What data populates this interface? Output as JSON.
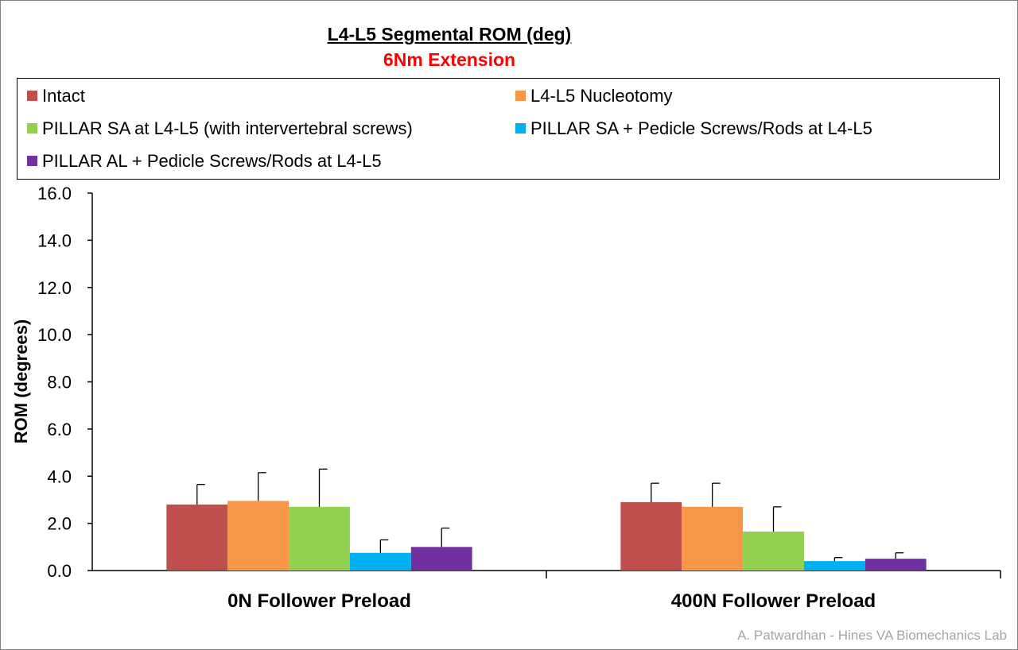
{
  "chart_data": {
    "type": "bar",
    "title": "L4-L5 Segmental ROM (deg)",
    "subtitle": "6Nm Extension",
    "ylabel": "ROM (degrees)",
    "xlabel": "",
    "ylim": [
      0,
      16
    ],
    "yticks": [
      "0.0",
      "2.0",
      "4.0",
      "6.0",
      "8.0",
      "10.0",
      "12.0",
      "14.0",
      "16.0"
    ],
    "categories": [
      "0N Follower Preload",
      "400N Follower Preload"
    ],
    "series": [
      {
        "name": "Intact",
        "color": "#c0504d",
        "values": [
          2.8,
          2.9
        ],
        "errors": [
          0.85,
          0.8
        ]
      },
      {
        "name": "L4-L5 Nucleotomy",
        "color": "#f79646",
        "values": [
          2.95,
          2.7
        ],
        "errors": [
          1.2,
          1.0
        ]
      },
      {
        "name": "PILLAR SA at L4-L5 (with intervertebral screws)",
        "color": "#92d050",
        "values": [
          2.7,
          1.65
        ],
        "errors": [
          1.6,
          1.05
        ]
      },
      {
        "name": "PILLAR SA + Pedicle Screws/Rods at L4-L5",
        "color": "#00b0f0",
        "values": [
          0.75,
          0.4
        ],
        "errors": [
          0.55,
          0.15
        ]
      },
      {
        "name": "PILLAR AL + Pedicle Screws/Rods at L4-L5",
        "color": "#7030a0",
        "values": [
          1.0,
          0.5
        ],
        "errors": [
          0.8,
          0.25
        ]
      }
    ],
    "legend_position": "top",
    "grid": false,
    "colors": {
      "subtitle": "#ff0000",
      "credit": "#a6a6a6"
    }
  },
  "credit": "A. Patwardhan - Hines VA Biomechanics Lab"
}
